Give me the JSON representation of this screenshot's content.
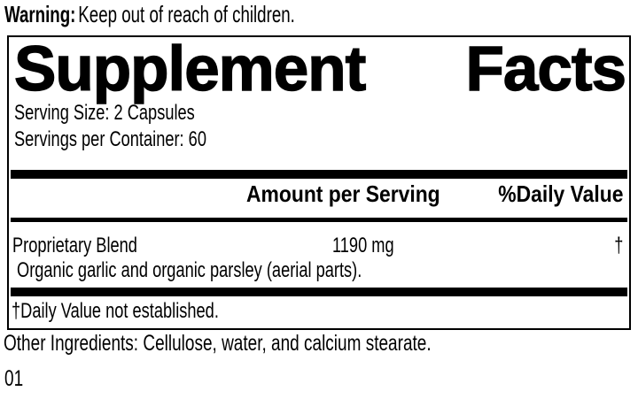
{
  "colors": {
    "background": "#ffffff",
    "text": "#000000"
  },
  "warning": {
    "label": "Warning:",
    "text": "Keep out of reach of children."
  },
  "panel": {
    "title": {
      "word1": "Supplement",
      "word2": "Facts"
    },
    "serving_size": "Serving Size: 2 Capsules",
    "servings_per_container": "Servings per Container: 60",
    "header": {
      "amount": "Amount per Serving",
      "daily_value": "%Daily Value"
    },
    "rows": [
      {
        "name": "Proprietary Blend",
        "amount": "1190 mg",
        "daily_value": "†",
        "description": "Organic garlic and organic parsley (aerial parts)."
      }
    ],
    "footnote": "†Daily Value not established."
  },
  "other_ingredients": "Other Ingredients: Cellulose, water, and calcium stearate.",
  "code": "01"
}
